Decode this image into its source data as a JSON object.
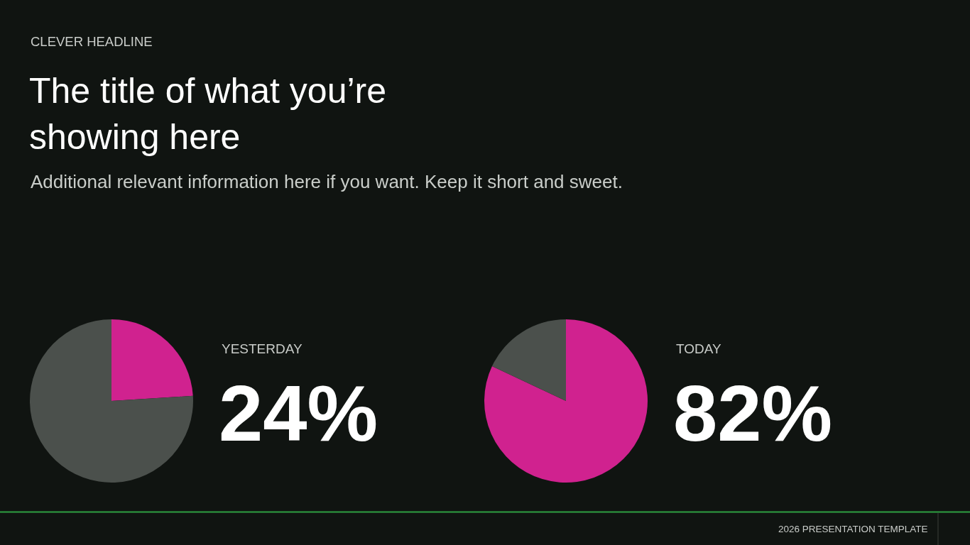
{
  "chart_data": [
    {
      "type": "other",
      "title": "The title of what you’re showing here",
      "subtitle": "Additional relevant information here if you want. Keep it short and sweet.",
      "annotations": [
        "CLEVER HEADLINE",
        "2026 PRESENTATION TEMPLATE"
      ]
    },
    {
      "type": "pie",
      "title": "YESTERDAY",
      "categories": [
        null,
        null
      ],
      "values": [
        24,
        76
      ],
      "colors": [
        "#d0228f",
        "#4b504c"
      ],
      "value_labels": [
        "24%",
        null
      ]
    },
    {
      "type": "pie",
      "title": "TODAY",
      "categories": [
        null,
        null
      ],
      "values": [
        82,
        18
      ],
      "colors": [
        "#d0228f",
        "#4b504c"
      ],
      "value_labels": [
        "82%",
        null
      ]
    }
  ]
}
